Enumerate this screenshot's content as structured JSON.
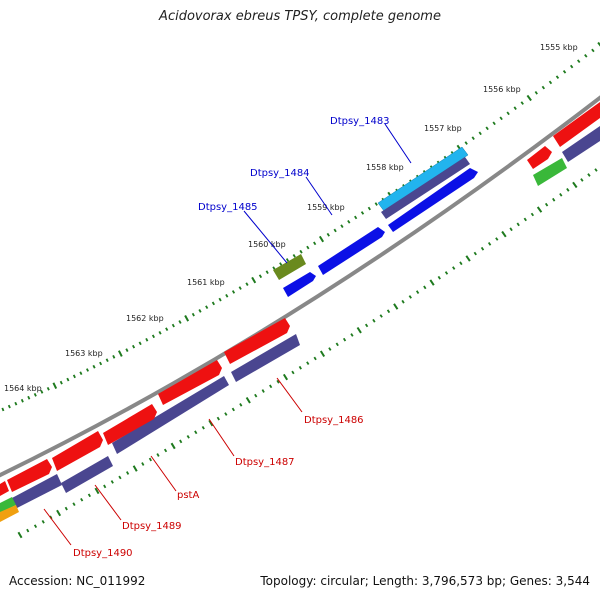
{
  "title": "Acidovorax ebreus TPSY, complete genome",
  "footer": {
    "accession": "Accession: NC_011992",
    "summary": "Topology: circular; Length: 3,796,573 bp; Genes: 3,544"
  },
  "map": {
    "backbone_color": "#888888",
    "tick_color": "#1e7a1e",
    "kbp_labels": [
      "1555 kbp",
      "1556 kbp",
      "1557 kbp",
      "1558 kbp",
      "1559 kbp",
      "1560 kbp",
      "1561 kbp",
      "1562 kbp",
      "1563 kbp",
      "1564 kbp"
    ],
    "gene_labels_top": [
      "Dtpsy_1483",
      "Dtpsy_1484",
      "Dtpsy_1485"
    ],
    "gene_labels_bottom": [
      "Dtpsy_1486",
      "Dtpsy_1487",
      "pstA",
      "Dtpsy_1489",
      "Dtpsy_1490"
    ],
    "colors": {
      "red": "#ee1111",
      "purple": "#4a4690",
      "blue": "#0b10e6",
      "cyan": "#22b4ee",
      "olive": "#6a8a1e",
      "green": "#3ab83a",
      "orange": "#f0a010"
    }
  }
}
